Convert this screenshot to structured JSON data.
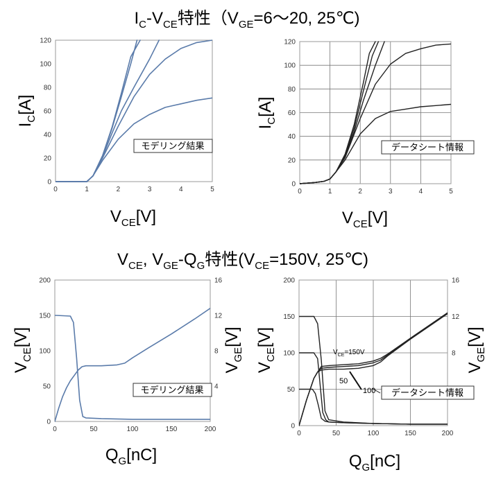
{
  "section_titles": {
    "top": {
      "p1": "I",
      "s1": "C",
      "p2": "-V",
      "s2": "CE",
      "p3": "特性（V",
      "s3": "GE",
      "p4": "=6～20, 25℃)"
    },
    "bottom": {
      "p1": "V",
      "s1": "CE",
      "p2": ", V",
      "s2": "GE",
      "p3": "-Q",
      "s3": "G",
      "p4": "特性(V",
      "s4": "CE",
      "p5": "=150V, 25℃)"
    }
  },
  "tags": {
    "model": "モデリング結果",
    "datasheet": "データシート情報"
  },
  "annotations": {
    "vce_prefix": "V",
    "vce_sub": "CE",
    "vce_suffix": "=150V",
    "n50": "50",
    "n100": "100"
  },
  "axis_labels": {
    "ic": {
      "main": "I",
      "sub": "C",
      "tail": "[A]"
    },
    "vce_v": {
      "main": "V",
      "sub": "CE",
      "tail": "[V]"
    },
    "vge_v": {
      "main": "V",
      "sub": "GE",
      "tail": "[V]"
    },
    "qg": {
      "main": "Q",
      "sub": "G",
      "tail": "[nC]"
    }
  },
  "chart_data": [
    {
      "id": "ic_vce_model",
      "type": "line",
      "title": "",
      "xlabel": "VCE[V]",
      "ylabel": "IC[A]",
      "xlim": [
        0,
        5
      ],
      "ylim": [
        0,
        120
      ],
      "xticks": [
        0,
        1,
        2,
        3,
        4,
        5
      ],
      "yticks": [
        0,
        20,
        40,
        60,
        80,
        100,
        120
      ],
      "grid": false,
      "color": "#5a7baa",
      "series": [
        {
          "x": [
            0,
            1,
            1.2,
            1.5,
            1.8,
            2.1,
            2.4,
            2.7
          ],
          "y": [
            0,
            0,
            5,
            22,
            46,
            75,
            106,
            120
          ]
        },
        {
          "x": [
            0,
            1,
            1.2,
            1.5,
            1.8,
            2.1,
            2.4,
            2.6
          ],
          "y": [
            0,
            0,
            5,
            22,
            45,
            72,
            100,
            120
          ]
        },
        {
          "x": [
            0,
            1,
            1.2,
            1.5,
            1.8,
            2.1,
            2.5,
            3.0,
            3.3
          ],
          "y": [
            0,
            0,
            5,
            21,
            41,
            60,
            80,
            104,
            120
          ]
        },
        {
          "x": [
            0,
            1,
            1.2,
            1.5,
            2.0,
            2.5,
            3.0,
            3.5,
            4.0,
            4.5,
            5.0
          ],
          "y": [
            0,
            0,
            5,
            20,
            47,
            72,
            91,
            104,
            113,
            118,
            120
          ]
        },
        {
          "x": [
            0,
            1,
            1.2,
            1.5,
            2.0,
            2.5,
            3.0,
            3.5,
            4.0,
            4.5,
            5.0
          ],
          "y": [
            0,
            0,
            5,
            18,
            36,
            49,
            57,
            63,
            66,
            69,
            71
          ]
        }
      ]
    },
    {
      "id": "ic_vce_datasheet",
      "type": "line",
      "title": "",
      "xlabel": "VCE[V]",
      "ylabel": "IC[A]",
      "xlim": [
        0,
        5
      ],
      "ylim": [
        0,
        120
      ],
      "xticks": [
        0,
        1,
        2,
        3,
        4,
        5
      ],
      "yticks": [
        0,
        20,
        40,
        60,
        80,
        100,
        120
      ],
      "grid": true,
      "color": "#222222",
      "series": [
        {
          "x": [
            0,
            0.5,
            0.8,
            1,
            1.2,
            1.5,
            1.8,
            2.1,
            2.3,
            2.5
          ],
          "y": [
            0,
            1,
            2,
            4,
            10,
            25,
            50,
            85,
            110,
            120
          ]
        },
        {
          "x": [
            0,
            0.5,
            0.8,
            1,
            1.2,
            1.5,
            1.8,
            2.1,
            2.4,
            2.6
          ],
          "y": [
            0,
            1,
            2,
            4,
            10,
            24,
            47,
            78,
            108,
            120
          ]
        },
        {
          "x": [
            0,
            0.5,
            0.8,
            1,
            1.2,
            1.5,
            1.8,
            2.1,
            2.5,
            2.8
          ],
          "y": [
            0,
            1,
            2,
            4,
            10,
            23,
            44,
            70,
            100,
            120
          ]
        },
        {
          "x": [
            0,
            0.5,
            0.8,
            1,
            1.2,
            1.5,
            2.0,
            2.5,
            3.0,
            3.5,
            4.0,
            4.5,
            5.0
          ],
          "y": [
            0,
            1,
            2,
            4,
            10,
            22,
            55,
            84,
            101,
            110,
            114,
            117,
            118
          ]
        },
        {
          "x": [
            0,
            0.5,
            0.8,
            1,
            1.2,
            1.5,
            2.0,
            2.5,
            3.0,
            3.5,
            4.0,
            4.5,
            5.0
          ],
          "y": [
            0,
            1,
            2,
            4,
            10,
            20,
            42,
            55,
            61,
            63,
            65,
            66,
            67
          ]
        }
      ]
    },
    {
      "id": "vce_vge_qg_model",
      "type": "line",
      "title": "",
      "xlabel": "QG[nC]",
      "ylabel": "VCE[V]",
      "ylabel_right": "VGE[V]",
      "xlim": [
        0,
        200
      ],
      "ylim": [
        0,
        200
      ],
      "ylim_right": [
        0,
        16
      ],
      "xticks": [
        0,
        50,
        100,
        150,
        200
      ],
      "yticks": [
        0,
        50,
        100,
        150,
        200
      ],
      "yticks_right": [
        4,
        8,
        12,
        16
      ],
      "grid": false,
      "color": "#5a7baa",
      "series": [
        {
          "axis": "left",
          "x": [
            0,
            2,
            20,
            24,
            28,
            32,
            36,
            40,
            60,
            100,
            150,
            200
          ],
          "y": [
            150,
            150,
            149,
            140,
            90,
            30,
            7,
            5,
            4,
            3,
            3,
            3
          ]
        },
        {
          "axis": "right",
          "x": [
            0,
            5,
            10,
            15,
            20,
            25,
            30,
            35,
            40,
            60,
            80,
            90,
            100,
            120,
            150,
            180,
            200
          ],
          "y": [
            0,
            1.5,
            2.8,
            3.8,
            4.6,
            5.2,
            5.8,
            6.2,
            6.3,
            6.3,
            6.4,
            6.6,
            7.2,
            8.3,
            9.9,
            11.6,
            12.8
          ]
        }
      ]
    },
    {
      "id": "vce_vge_qg_datasheet",
      "type": "line",
      "title": "",
      "xlabel": "QG[nC]",
      "ylabel": "VCE[V]",
      "ylabel_right": "VGE[V]",
      "xlim": [
        0,
        200
      ],
      "ylim": [
        0,
        200
      ],
      "ylim_right": [
        0,
        16
      ],
      "xticks": [
        0,
        50,
        100,
        150,
        200
      ],
      "yticks": [
        0,
        50,
        100,
        150,
        200
      ],
      "yticks_right": [
        8,
        12,
        16
      ],
      "grid": true,
      "color": "#222222",
      "series": [
        {
          "name": "VCE=150V",
          "axis": "left",
          "x": [
            0,
            20,
            25,
            30,
            35,
            40,
            60,
            100,
            150,
            200
          ],
          "y": [
            150,
            150,
            140,
            90,
            20,
            8,
            5,
            3,
            2,
            2
          ]
        },
        {
          "name": "100",
          "axis": "left",
          "x": [
            0,
            20,
            25,
            28,
            32,
            36,
            40,
            60,
            100,
            150,
            200
          ],
          "y": [
            100,
            100,
            92,
            60,
            18,
            8,
            5,
            4,
            3,
            2,
            2
          ]
        },
        {
          "name": "50",
          "axis": "left",
          "x": [
            0,
            18,
            22,
            26,
            30,
            35,
            40,
            60,
            100,
            150,
            200
          ],
          "y": [
            50,
            50,
            44,
            28,
            10,
            6,
            5,
            4,
            3,
            2,
            2
          ]
        },
        {
          "axis": "right",
          "x": [
            0,
            10,
            20,
            25,
            30,
            40,
            60,
            80,
            100,
            110,
            120,
            150,
            200
          ],
          "y": [
            0,
            2.8,
            5.2,
            5.9,
            6.1,
            6.2,
            6.2,
            6.3,
            6.6,
            7.0,
            7.7,
            9.5,
            12.3
          ]
        },
        {
          "axis": "right",
          "x": [
            0,
            10,
            20,
            25,
            30,
            40,
            60,
            80,
            100,
            110,
            120,
            150,
            200
          ],
          "y": [
            0,
            2.8,
            5.2,
            5.9,
            6.3,
            6.4,
            6.5,
            6.6,
            6.9,
            7.2,
            7.8,
            9.6,
            12.4
          ]
        },
        {
          "axis": "right",
          "x": [
            0,
            10,
            20,
            25,
            30,
            40,
            60,
            80,
            100,
            110,
            120,
            150,
            200
          ],
          "y": [
            0,
            2.8,
            5.2,
            5.9,
            6.5,
            6.6,
            6.7,
            6.8,
            7.1,
            7.4,
            7.9,
            9.6,
            12.4
          ]
        }
      ]
    }
  ]
}
